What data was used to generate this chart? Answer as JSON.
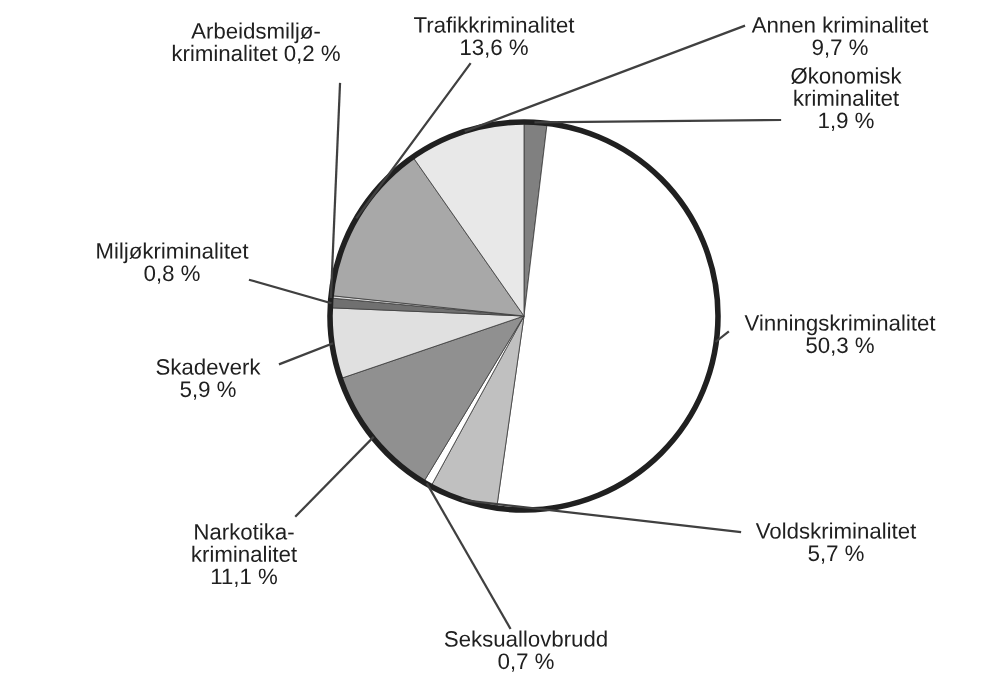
{
  "chart_data": {
    "type": "pie",
    "categories": [
      "Økonomisk\nkriminalitet",
      "Vinningskriminalitet",
      "Voldskriminalitet",
      "Seksuallovbrudd",
      "Narkotika-\nkriminalitet",
      "Skadeverk",
      "Miljøkriminalitet",
      "Arbeidsmiljø-\nkriminalitet",
      "Trafikkriminalitet",
      "Annen kriminalitet"
    ],
    "values": [
      1.9,
      50.3,
      5.7,
      0.7,
      11.1,
      5.9,
      0.8,
      0.2,
      13.6,
      9.7
    ],
    "value_labels": [
      "1,9 %",
      "50,3 %",
      "5,7 %",
      "0,7 %",
      "11,1 %",
      "5,9 %",
      "0,8 %",
      "0,2 %",
      "13,6 %",
      "9,7 %"
    ],
    "colors": [
      "#808080",
      "#ffffff",
      "#c0c0c0",
      "#ffffff",
      "#909090",
      "#e0e0e0",
      "#707070",
      "#e0e0e0",
      "#a8a8a8",
      "#e8e8e8"
    ],
    "legend": false
  }
}
